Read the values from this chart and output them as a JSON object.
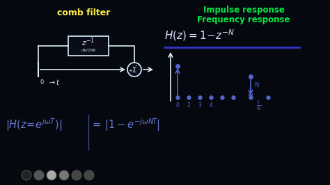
{
  "bg_color": "#05080f",
  "title_comb": "comb filter",
  "title_comb_color": "#ffee44",
  "title_impulse": "Impulse response",
  "title_impulse_color": "#00ee44",
  "title_freq": "Frequency response",
  "title_freq_color": "#00ee44",
  "hz_color": "#ddddff",
  "underline_color": "#3333cc",
  "stem_color": "#5566cc",
  "dot_color": "#5566cc",
  "bottom_eq_color": "#6677cc",
  "white": "#ddeeff",
  "icon_colors": [
    "#222222",
    "#555555",
    "#aaaaaa",
    "#777777",
    "#444444",
    "#444444"
  ]
}
